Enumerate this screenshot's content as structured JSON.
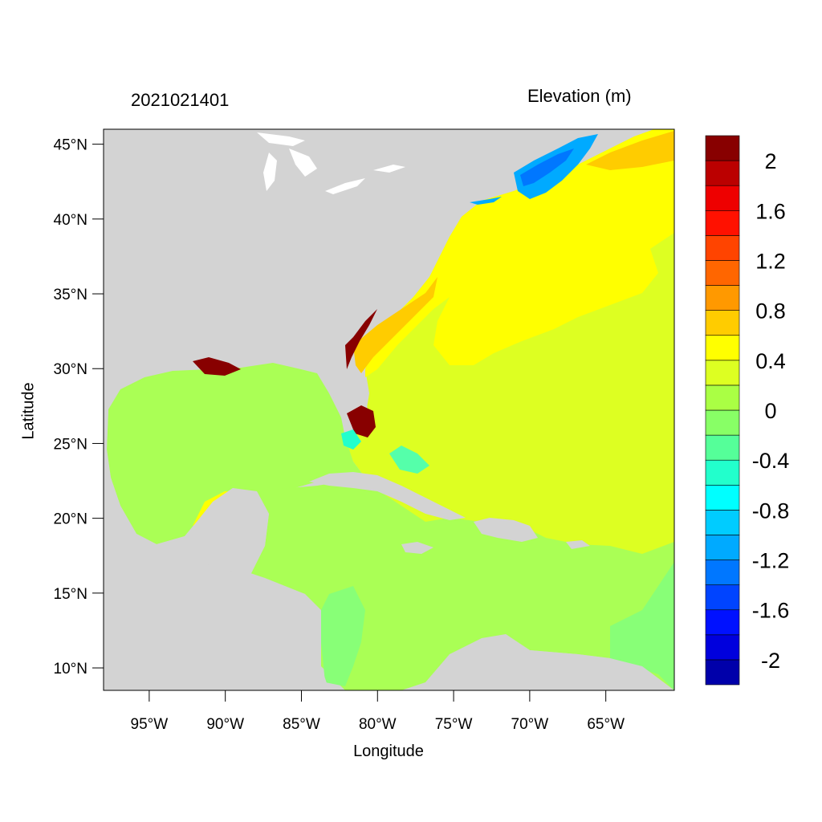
{
  "date_label": "2021021401",
  "variable_label": "Elevation (m)",
  "xlabel": "Longitude",
  "ylabel": "Latitude",
  "lon_range": [
    -98,
    -60.5
  ],
  "lat_range": [
    8.5,
    46
  ],
  "x_ticks": [
    {
      "value": -95,
      "label": "95°W"
    },
    {
      "value": -90,
      "label": "90°W"
    },
    {
      "value": -85,
      "label": "85°W"
    },
    {
      "value": -80,
      "label": "80°W"
    },
    {
      "value": -75,
      "label": "75°W"
    },
    {
      "value": -70,
      "label": "70°W"
    },
    {
      "value": -65,
      "label": "65°W"
    }
  ],
  "y_ticks": [
    {
      "value": 10,
      "label": "10°N"
    },
    {
      "value": 15,
      "label": "15°N"
    },
    {
      "value": 20,
      "label": "20°N"
    },
    {
      "value": 25,
      "label": "25°N"
    },
    {
      "value": 30,
      "label": "30°N"
    },
    {
      "value": 35,
      "label": "35°N"
    },
    {
      "value": 40,
      "label": "40°N"
    },
    {
      "value": 45,
      "label": "45°N"
    }
  ],
  "colorbar": {
    "colors": [
      "#0000aa",
      "#0000dd",
      "#0011ff",
      "#0044ff",
      "#0077ff",
      "#00aaff",
      "#00ccff",
      "#00ffff",
      "#22ffcc",
      "#55ff99",
      "#88ff66",
      "#aaff44",
      "#ddff22",
      "#ffff00",
      "#ffcc00",
      "#ff9900",
      "#ff6600",
      "#ff4400",
      "#ff1100",
      "#ee0000",
      "#bb0000",
      "#880000"
    ],
    "labels": [
      "-2",
      "-1.6",
      "-1.2",
      "-0.8",
      "-0.4",
      "0",
      "0.4",
      "0.8",
      "1.2",
      "1.6",
      "2"
    ]
  },
  "colors": {
    "land": "#d3d3d3",
    "lake": "#ffffff",
    "gulf_caribbean": "#aaff55",
    "atlantic": "#ddff22",
    "coastal_atlantic": "#ffff00",
    "surge_orange": "#ffcc00",
    "surge_red": "#880000",
    "negative": "#0077ff"
  }
}
